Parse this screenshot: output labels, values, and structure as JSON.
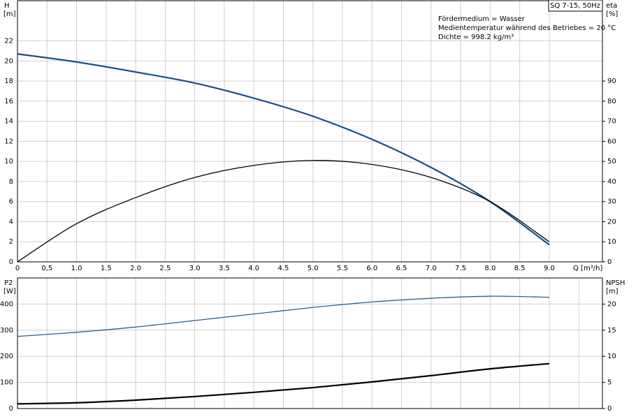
{
  "chart_data": [
    {
      "type": "line",
      "title": "SQ 7-15, 50Hz",
      "annotations": [
        "Fördermedium = Wasser",
        "Medientemperatur während des Betriebes = 20 °C",
        "Dichte = 998.2 kg/m³"
      ],
      "xlabel": "Q [m³/h]",
      "ylabel": "H",
      "yunit": "[m]",
      "y2label": "eta",
      "y2unit": "[%]",
      "x": [
        0,
        1,
        2,
        3,
        4,
        5,
        6,
        7,
        8,
        9
      ],
      "series": [
        {
          "color": "#1a4f86",
          "values": [
            20.7,
            19.9,
            18.9,
            17.8,
            16.3,
            14.5,
            12.2,
            9.4,
            6.0,
            1.7
          ]
        },
        {
          "color": "#000000",
          "axis": "y2",
          "values": [
            0,
            19,
            32,
            42,
            48,
            50.5,
            48.5,
            42,
            30,
            10
          ]
        }
      ],
      "xlim": [
        0,
        9.9
      ],
      "xticks": [
        0,
        {
          "value": 0.5,
          "label": "0,5"
        },
        {
          "value": 1,
          "label": "1.0"
        },
        1.5,
        {
          "value": 2,
          "label": "2.0"
        },
        2.5,
        {
          "value": 3,
          "label": "3.0"
        },
        3.5,
        {
          "value": 4,
          "label": "4.0"
        },
        4.5,
        {
          "value": 5,
          "label": "5.0"
        },
        5.5,
        {
          "value": 6,
          "label": "6.0"
        },
        6.5,
        {
          "value": 7,
          "label": "7.0"
        },
        7.5,
        {
          "value": 8,
          "label": "8.0"
        },
        8.5,
        {
          "value": 9,
          "label": "9.0"
        }
      ],
      "ylim": [
        0,
        26
      ],
      "yticks": [
        0,
        2,
        4,
        6,
        8,
        10,
        12,
        14,
        16,
        18,
        20,
        22
      ],
      "y2lim": [
        0,
        130
      ],
      "y2ticks": [
        0,
        10,
        20,
        30,
        40,
        50,
        60,
        70,
        80,
        90
      ],
      "grid": true
    },
    {
      "type": "line",
      "ylabel": "P2",
      "yunit": "[W]",
      "y2label": "NPSH",
      "y2unit": "[m]",
      "x": [
        0,
        1,
        2,
        3,
        4,
        5,
        6,
        7,
        8,
        9
      ],
      "series": [
        {
          "color": "#2b5f8f",
          "values": [
            276,
            292,
            312,
            337,
            362,
            387,
            408,
            422,
            430,
            426
          ]
        },
        {
          "color": "#000000",
          "axis": "y2",
          "values": [
            0.9,
            1.1,
            1.6,
            2.3,
            3.1,
            4.0,
            5.1,
            6.3,
            7.6,
            8.6
          ]
        }
      ],
      "xlim": [
        0,
        9.9
      ],
      "xticks": [
        0,
        0.5,
        1,
        1.5,
        2,
        2.5,
        3,
        3.5,
        4,
        4.5,
        5,
        5.5,
        6,
        6.5,
        7,
        7.5,
        8,
        8.5,
        9,
        9.5
      ],
      "ylim": [
        0,
        500
      ],
      "yticks": [
        0,
        100,
        200,
        300,
        400
      ],
      "y2lim": [
        0,
        25
      ],
      "y2ticks": [
        0,
        5,
        10,
        15,
        20
      ],
      "grid": true
    }
  ]
}
